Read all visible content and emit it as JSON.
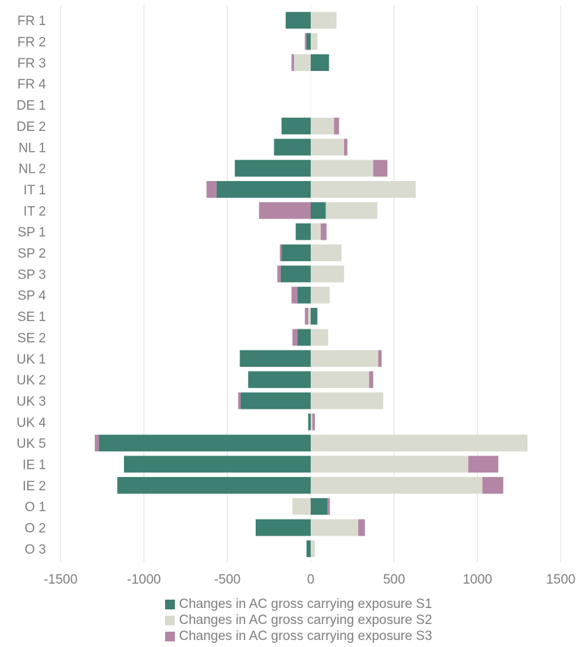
{
  "chart_data": {
    "type": "bar",
    "orientation": "horizontal",
    "stacked": true,
    "title": "",
    "xlabel": "",
    "ylabel": "",
    "xlim": [
      -1500,
      1500
    ],
    "x_ticks": [
      "-1500",
      "-1000",
      "-500",
      "0",
      "500",
      "1000",
      "1500"
    ],
    "x_tick_values": [
      -1500,
      -1000,
      -500,
      0,
      500,
      1000,
      1500
    ],
    "grid": "vertical",
    "legend_position": "bottom",
    "categories": [
      "FR 1",
      "FR 2",
      "FR 3",
      "FR 4",
      "DE 1",
      "DE 2",
      "NL 1",
      "NL 2",
      "IT 1",
      "IT 2",
      "SP 1",
      "SP 2",
      "SP 3",
      "SP 4",
      "SE 1",
      "SE 2",
      "UK 1",
      "UK 2",
      "UK 3",
      "UK 4",
      "UK 5",
      "IE 1",
      "IE 2",
      "O 1",
      "O 2",
      "O 3"
    ],
    "series": [
      {
        "name": "Changes in AC gross carrying exposure S1",
        "color": "#3d7f70",
        "values": [
          -150,
          -25,
          110,
          0,
          0,
          -175,
          -220,
          -455,
          -565,
          90,
          -90,
          -175,
          -180,
          -80,
          40,
          -80,
          -425,
          -375,
          -420,
          -15,
          -1270,
          -1120,
          -1160,
          100,
          -330,
          -25
        ]
      },
      {
        "name": "Changes in AC gross carrying exposure S2",
        "color": "#dadbcf",
        "values": [
          155,
          40,
          -100,
          0,
          0,
          140,
          200,
          375,
          630,
          310,
          60,
          185,
          200,
          115,
          -15,
          105,
          405,
          350,
          435,
          10,
          1300,
          945,
          1030,
          -110,
          285,
          25
        ]
      },
      {
        "name": "Changes in AC gross carrying exposure S3",
        "color": "#b386a5",
        "values": [
          0,
          -10,
          -15,
          0,
          0,
          30,
          20,
          85,
          -60,
          -310,
          35,
          -10,
          -20,
          -35,
          -20,
          -30,
          20,
          25,
          -15,
          15,
          -25,
          180,
          125,
          15,
          40,
          0
        ]
      }
    ]
  }
}
